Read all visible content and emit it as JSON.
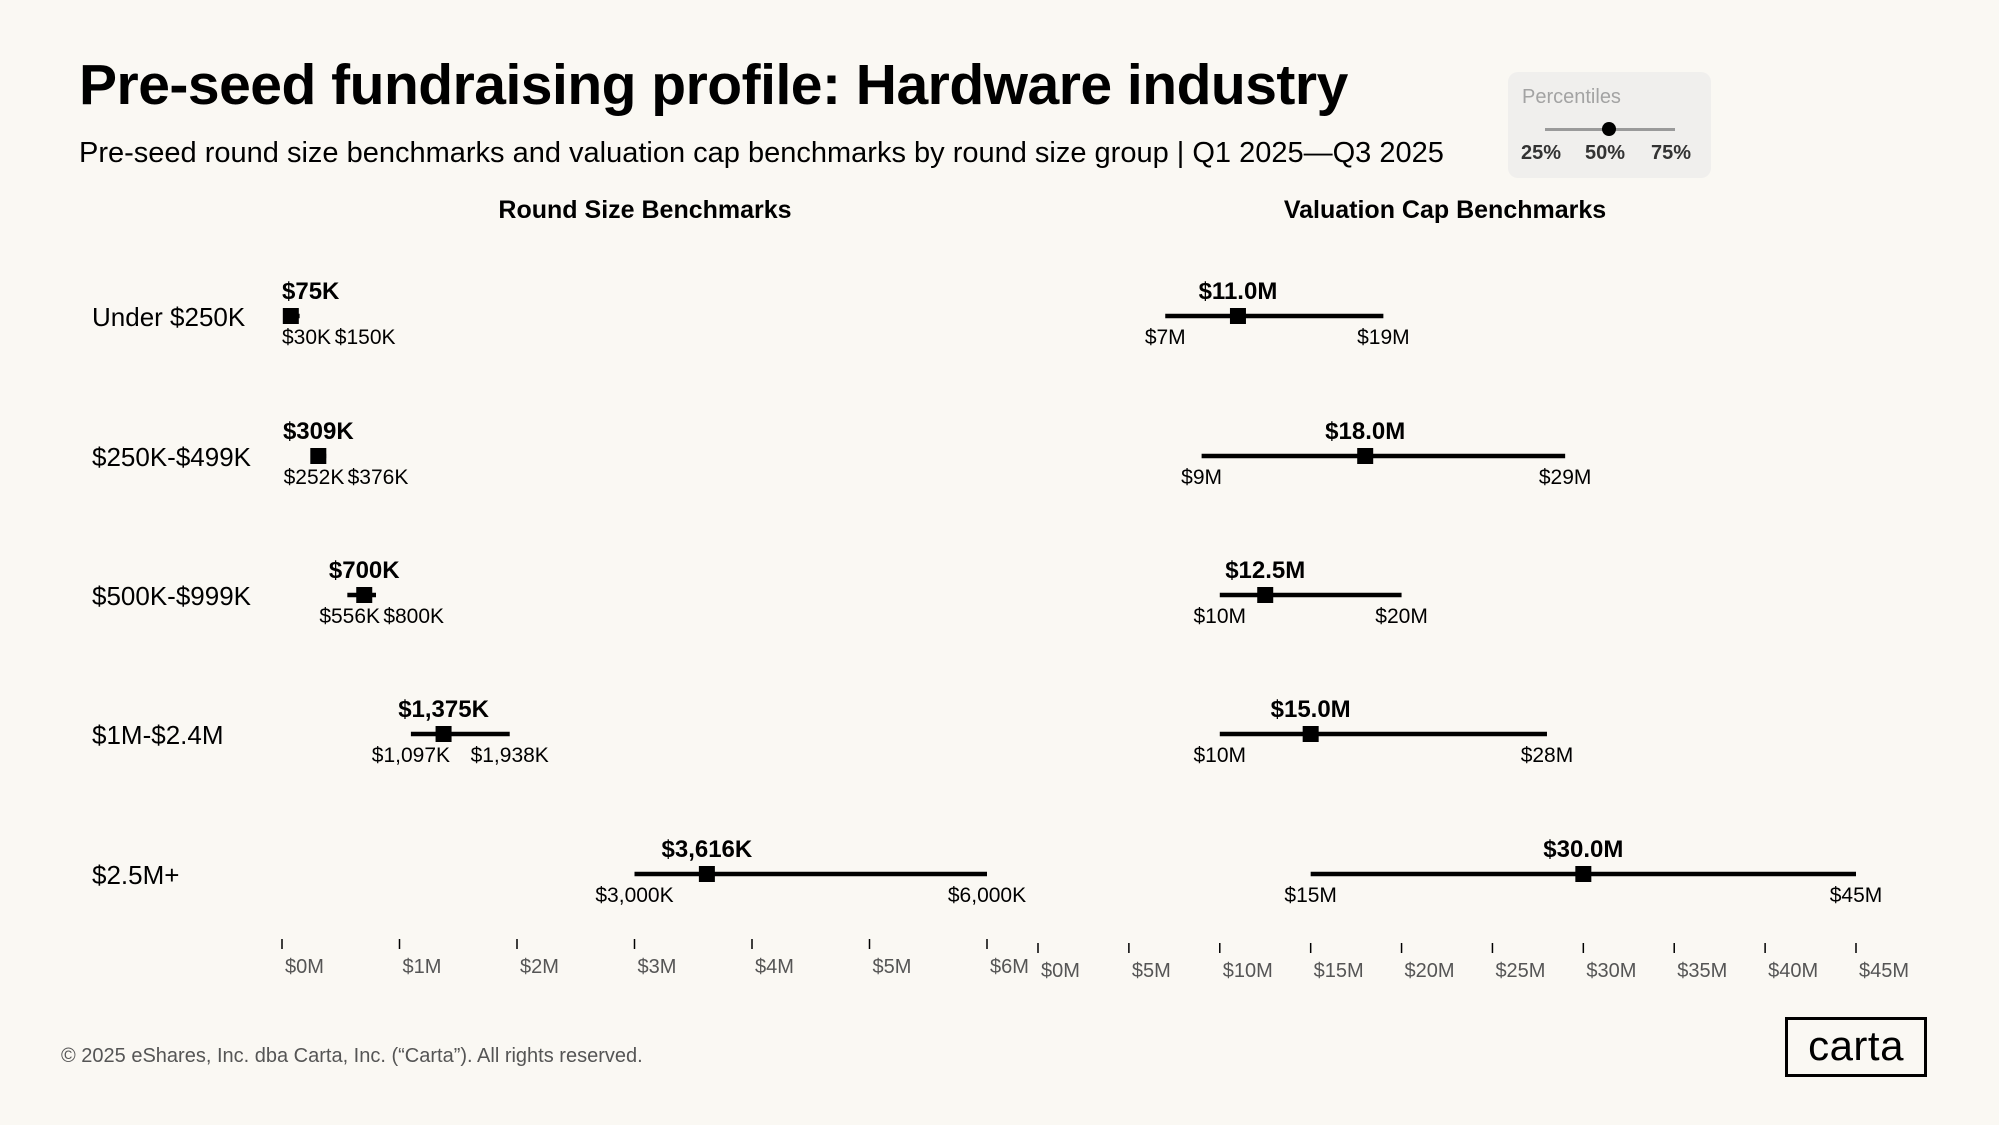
{
  "title": "Pre-seed fundraising profile: Hardware industry",
  "subtitle": "Pre-seed round size benchmarks and valuation cap benchmarks by round size group | Q1 2025—Q3 2025",
  "legend": {
    "title": "Percentiles",
    "labels": [
      "25%",
      "50%",
      "75%"
    ]
  },
  "panels": {
    "left_title": "Round Size Benchmarks",
    "right_title": "Valuation Cap Benchmarks"
  },
  "footer": "© 2025 eShares, Inc. dba Carta, Inc. (“Carta”). All rights reserved.",
  "logo_text": "carta",
  "chart_data": [
    {
      "type": "range",
      "title": "Round Size Benchmarks",
      "unit": "$M",
      "categories": [
        "Under $250K",
        "$250K-$499K",
        "$500K-$999K",
        "$1M-$2.4M",
        "$2.5M+"
      ],
      "x_ticks": [
        "$0M",
        "$1M",
        "$2M",
        "$3M",
        "$4M",
        "$5M",
        "$6M"
      ],
      "xlim": [
        0,
        6
      ],
      "p25": [
        0.03,
        0.252,
        0.556,
        1.097,
        3.0
      ],
      "p50": [
        0.075,
        0.309,
        0.7,
        1.375,
        3.616
      ],
      "p75": [
        0.15,
        0.376,
        0.8,
        1.938,
        6.0
      ],
      "p25_labels": [
        "$30K",
        "$252K",
        "$556K",
        "$1,097K",
        "$3,000K"
      ],
      "p50_labels": [
        "$75K",
        "$309K",
        "$700K",
        "$1,375K",
        "$3,616K"
      ],
      "p75_labels": [
        "$150K",
        "$376K",
        "$800K",
        "$1,938K",
        "$6,000K"
      ]
    },
    {
      "type": "range",
      "title": "Valuation Cap Benchmarks",
      "unit": "$M",
      "categories": [
        "Under $250K",
        "$250K-$499K",
        "$500K-$999K",
        "$1M-$2.4M",
        "$2.5M+"
      ],
      "x_ticks": [
        "$0M",
        "$5M",
        "$10M",
        "$15M",
        "$20M",
        "$25M",
        "$30M",
        "$35M",
        "$40M",
        "$45M"
      ],
      "xlim": [
        0,
        45
      ],
      "p25": [
        7,
        9,
        10,
        10,
        15
      ],
      "p50": [
        11.0,
        18.0,
        12.5,
        15.0,
        30.0
      ],
      "p75": [
        19,
        29,
        20,
        28,
        45
      ],
      "p25_labels": [
        "$7M",
        "$9M",
        "$10M",
        "$10M",
        "$15M"
      ],
      "p50_labels": [
        "$11.0M",
        "$18.0M",
        "$12.5M",
        "$15.0M",
        "$30.0M"
      ],
      "p75_labels": [
        "$19M",
        "$29M",
        "$20M",
        "$28M",
        "$45M"
      ]
    }
  ]
}
